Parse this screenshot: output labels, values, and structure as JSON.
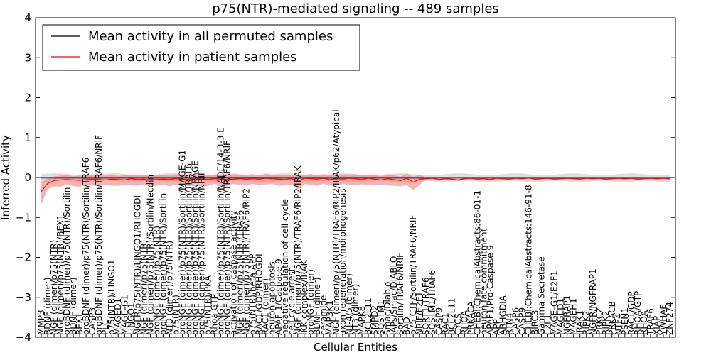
{
  "chart_data": {
    "type": "line",
    "title": "p75(NTR)-mediated signaling -- 489 samples",
    "xlabel": "Cellular Entities",
    "ylabel": "Inferred Activity",
    "ylim": [
      -4,
      4
    ],
    "yticks": [
      4,
      3,
      2,
      1,
      0,
      -1,
      -2,
      -3,
      -4
    ],
    "grid": false,
    "legend_position": "top-left",
    "colors": {
      "permuted": "#000000",
      "patient": "#ff0000",
      "patient_band": "#f08080",
      "permuted_band": "#c8c8c8"
    },
    "categories": [
      "MMP3",
      "BDNF (dimer)",
      "NGF (dimer)/p75(NTR)",
      "NGF (dimer)/p75(NTR)/BEX1",
      "proBDNF (dimer)/p75(NTR)/Sortilin",
      "BDNF (dimer)",
      "BEX1",
      "proBDNF (dimer)/p75(NTR)/Sortilin/TRAF6",
      "CASP3",
      "proBDNF (dimer)/p75(NTR)/Sortilin/TRAF6/NRIF",
      "PLG",
      "p75(NTR)/LINGO1",
      "MAGED1",
      "MAGE-G1",
      "LINGO1",
      "NGFR/p75(NTR)/LINGO1/RHOGDI",
      "NGF (dimer)/p75(NTR)",
      "NGF (dimer)/p75(NTR)/Sortilin/Necdin",
      "proNGF (dimer)/p75(NTR)",
      "proNGF (dimer)/p75(NTR)/Sortilin",
      "NT3 (dimer)/p75(NTR)",
      "p75(NTR)",
      "proNGF (dimer)/p75(NTR)/Sortilin/MAGE-G1",
      "proNGF (dimer)/p75(NTR)/Sortilin/TRAF6",
      "proNGF (dimer)/p75(NTR)/Sortilin/NRAGE",
      "proNGF (dimer)/p75(NTR)/Sortilin/NRIF",
      "p75(NTR)/PKA",
      "Rhoa GTP",
      "proNGF (dimer)/p75(NTR)/Sortilin/NADE/14-3-3 E",
      "proNGF (dimer)/p75(NTR)/Sortilin/TRAF6/NRIF",
      "activation of caspase activity",
      "NGF (dimer)/p75(NTR)/TRAF6",
      "NGF (dimer)/p75(NTR)/TRAF6/RIP2",
      "p75(NTR)/beta APP",
      "RAC1/GDP/RHOGDI",
      "RAC1 (dimer)",
      "neuron apoptosis",
      "APAF-1/Caspase 9",
      "negative regulation of cell cycle",
      "cell cycle arrest",
      "NGF (dimer)/p75(NTR)/TRAF6/RIP2/IRAK",
      "IKK complex/IRAK",
      "proNGF (dimer)",
      "BDNF (dimer)",
      "ceramide",
      "MAP3K1",
      "NGF (dimer)/p75(NTR)/TRAF6/RIP2/IRAK/p62/Atypical",
      "axon regeneration/morphogenesis",
      "NT-4/5 (dimer)",
      "NT3 (dimer)",
      "MAPK8",
      "BCL2L11",
      "SMPD2",
      "SQSTM1",
      "Smac/Diablo",
      "IAPs/Smac/DIABLO",
      "Sortilin/TRAF6/NRIF",
      "BAD",
      "p75 CTF/Sortilin/TRAF6/NRIF",
      "NRIF/E2F1",
      "SORT1/TRAF6",
      "SQSTM1/TRAF6",
      "CASP9",
      "RAC1",
      "BCL2L11",
      "CYCS",
      "RHOA",
      "PRKACA",
      "CHEBI:ChemicalAbstracts:86-01-1",
      "neuron fate commitment",
      "APAF1/Pro-Caspase 9",
      "APP",
      "ARHGDIA",
      "RTN4",
      "CASP6",
      "CASP9",
      "CHEBI:ChemicalAbstracts:146-91-8",
      "BIRC3",
      "Gamma Secretase",
      "E2F1",
      "MAGE-G1/E2F1",
      "MAGED1",
      "NGFRAP1",
      "MAGEH1",
      "IRAK1",
      "RIPK2",
      "NGFR/NGFRAP1",
      "PRKCZ",
      "RIPK2",
      "PRKACB",
      "NTF4",
      "PSEN1",
      "RAC1/GDP",
      "RHOA/GTP",
      "RHOA",
      "TRAF6",
      "XIAP",
      "YWHAE",
      "ZNF274"
    ],
    "series": [
      {
        "name": "Mean activity in all permuted samples",
        "values": [
          -0.01,
          -0.01,
          -0.01,
          -0.01,
          -0.01,
          -0.01,
          -0.01,
          -0.01,
          -0.01,
          -0.01,
          -0.01,
          -0.01,
          -0.01,
          -0.01,
          -0.01,
          -0.01,
          -0.01,
          -0.01,
          -0.01,
          -0.01,
          -0.01,
          -0.01,
          -0.01,
          -0.01,
          -0.01,
          -0.01,
          -0.01,
          -0.01,
          -0.01,
          -0.01,
          -0.01,
          -0.01,
          -0.01,
          -0.01,
          -0.01,
          -0.01,
          -0.01,
          -0.01,
          -0.01,
          -0.01,
          -0.01,
          -0.01,
          -0.01,
          -0.01,
          -0.01,
          -0.01,
          -0.01,
          -0.01,
          -0.01,
          -0.01,
          -0.01,
          -0.01,
          -0.01,
          -0.01,
          -0.01,
          -0.01,
          -0.01,
          -0.01,
          -0.01,
          -0.01,
          -0.01,
          -0.01,
          -0.01,
          -0.01,
          -0.01,
          -0.01,
          -0.01,
          -0.01,
          -0.01,
          -0.01,
          -0.01,
          -0.01,
          -0.01,
          -0.01,
          -0.01,
          -0.01,
          -0.01,
          -0.01,
          -0.01,
          -0.01,
          -0.01,
          -0.01,
          -0.01,
          -0.01,
          -0.01,
          -0.01,
          -0.01,
          -0.01,
          -0.01,
          -0.01,
          -0.01,
          -0.01,
          -0.01,
          -0.01,
          -0.01,
          -0.01,
          -0.01,
          -0.01,
          -0.01
        ]
      },
      {
        "name": "Mean activity in patient samples",
        "values": [
          -0.35,
          -0.15,
          -0.08,
          -0.06,
          -0.05,
          -0.06,
          -0.07,
          -0.05,
          -0.04,
          -0.05,
          -0.06,
          -0.04,
          -0.05,
          -0.06,
          -0.03,
          -0.05,
          -0.04,
          -0.06,
          -0.05,
          -0.04,
          -0.05,
          -0.03,
          -0.04,
          -0.05,
          -0.03,
          -0.04,
          -0.05,
          -0.03,
          -0.04,
          -0.05,
          -0.04,
          -0.03,
          -0.04,
          -0.03,
          -0.04,
          -0.02,
          -0.03,
          -0.04,
          -0.05,
          -0.03,
          -0.1,
          -0.02,
          -0.03,
          -0.04,
          -0.02,
          -0.05,
          -0.03,
          -0.04,
          -0.02,
          -0.03,
          -0.05,
          -0.02,
          -0.04,
          -0.06,
          -0.03,
          -0.05,
          -0.08,
          -0.02,
          -0.12,
          -0.04,
          -0.03,
          -0.02,
          -0.05,
          -0.03,
          -0.04,
          -0.06,
          -0.03,
          -0.02,
          -0.04,
          -0.03,
          -0.05,
          -0.02,
          -0.03,
          -0.04,
          -0.02,
          -0.03,
          -0.01,
          -0.04,
          -0.03,
          -0.02,
          -0.04,
          -0.03,
          -0.02,
          -0.03,
          -0.04,
          -0.02,
          -0.03,
          -0.02,
          -0.04,
          -0.03,
          -0.02,
          -0.03,
          -0.02,
          -0.04,
          -0.03,
          -0.02,
          -0.03,
          -0.02,
          -0.03
        ]
      }
    ],
    "bands": [
      {
        "name": "patient spread",
        "lower": -0.65,
        "upper": 0.15
      },
      {
        "name": "permuted spread",
        "lower": -0.2,
        "upper": 0.1
      }
    ]
  }
}
